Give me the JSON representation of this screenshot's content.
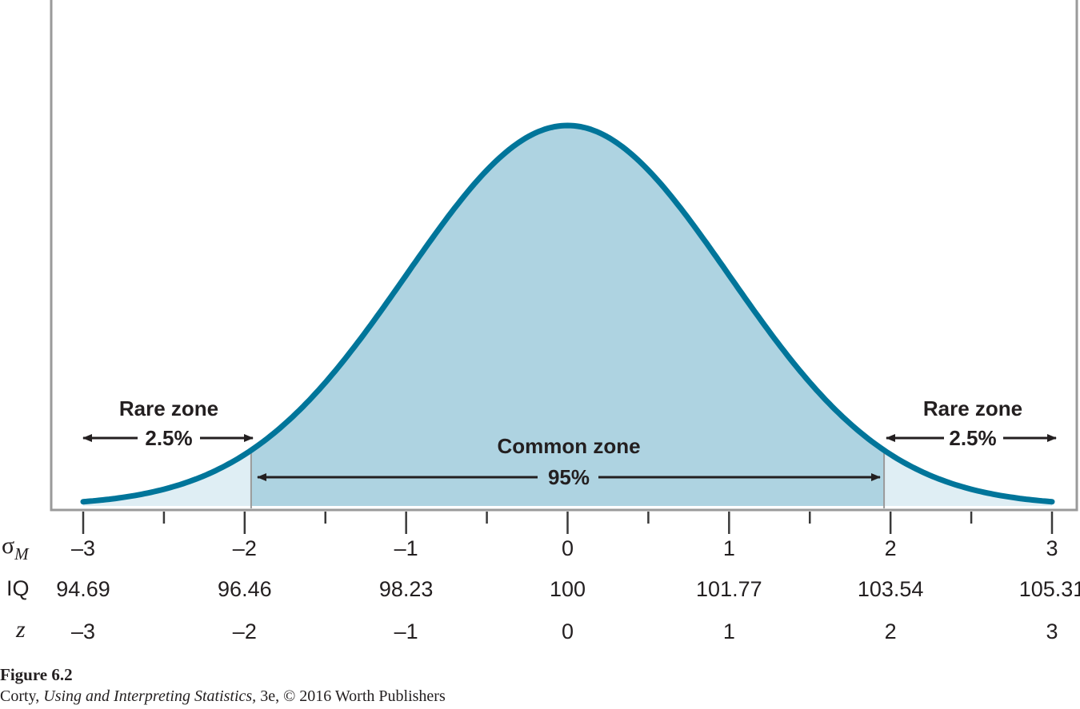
{
  "chart_data": {
    "type": "area",
    "distribution": "normal",
    "x_range": [
      -3,
      3
    ],
    "shaded_regions": [
      {
        "name": "rare-left",
        "from": -3,
        "to": -1.96,
        "color": "#dfeef4"
      },
      {
        "name": "common",
        "from": -1.96,
        "to": 1.96,
        "color": "#aed3e1"
      },
      {
        "name": "rare-right",
        "from": 1.96,
        "to": 3,
        "color": "#dfeef4"
      }
    ],
    "curve_color": "#00759a",
    "frame_color": "#9a9a9a",
    "zones": [
      {
        "name": "Rare zone",
        "percent": "2.5%"
      },
      {
        "name": "Common zone",
        "percent": "95%"
      },
      {
        "name": "Rare zone",
        "percent": "2.5%"
      }
    ],
    "axis_rows": [
      {
        "label": "σ",
        "subscript": "M",
        "ticks": [
          "–3",
          "–2",
          "–1",
          "0",
          "1",
          "2",
          "3"
        ]
      },
      {
        "label": "IQ",
        "ticks": [
          "94.69",
          "96.46",
          "98.23",
          "100",
          "101.77",
          "103.54",
          "105.31"
        ]
      },
      {
        "label": "z",
        "ticks": [
          "–3",
          "–2",
          "–1",
          "0",
          "1",
          "2",
          "3"
        ]
      }
    ]
  },
  "caption": {
    "title": "Figure 6.2",
    "credit_author": "Corty, ",
    "credit_book": "Using and Interpreting Statistics,",
    "credit_rest": " 3e, © 2016 Worth Publishers"
  }
}
